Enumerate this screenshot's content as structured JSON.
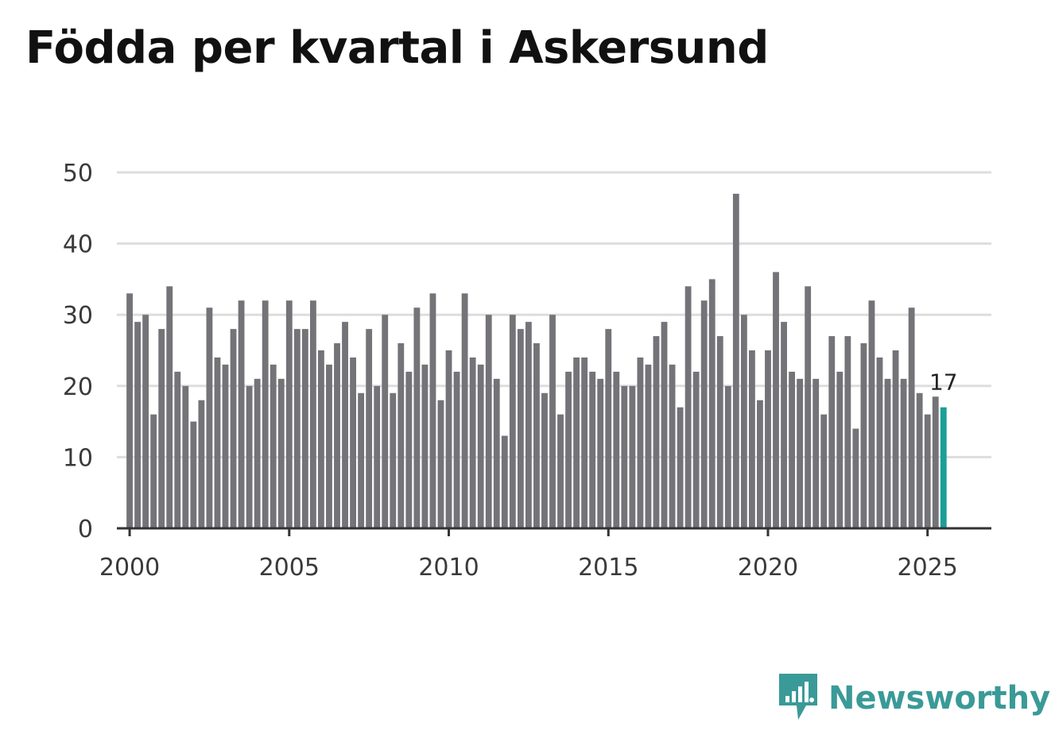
{
  "title": "Födda per kvartal i Askersund",
  "brand": {
    "name": "Newsworthy",
    "icon": "newsworthy-logo-icon"
  },
  "colors": {
    "bar": "#747378",
    "highlight": "#1a9f98",
    "grid": "#dddddd",
    "axis": "#333333",
    "brand": "#3a9a97"
  },
  "chart_data": {
    "type": "bar",
    "title": "Födda per kvartal i Askersund",
    "xlabel": "",
    "ylabel": "",
    "ylim": [
      0,
      50
    ],
    "yticks": [
      0,
      10,
      20,
      30,
      40,
      50
    ],
    "xticks": [
      2000,
      2005,
      2010,
      2015,
      2020,
      2025
    ],
    "xlim": [
      1999.6,
      2027.0
    ],
    "start_year": 2000,
    "periods_per_year": 4,
    "values": [
      33,
      29,
      30,
      16,
      28,
      34,
      22,
      20,
      15,
      18,
      31,
      24,
      23,
      28,
      32,
      20,
      21,
      32,
      23,
      21,
      32,
      28,
      28,
      32,
      25,
      23,
      26,
      29,
      24,
      19,
      28,
      20,
      30,
      19,
      26,
      22,
      31,
      23,
      33,
      18,
      25,
      22,
      33,
      24,
      23,
      30,
      21,
      13,
      30,
      28,
      29,
      26,
      19,
      30,
      16,
      22,
      24,
      24,
      22,
      21,
      28,
      22,
      20,
      20,
      24,
      23,
      27,
      29,
      23,
      17,
      34,
      22,
      32,
      35,
      27,
      20,
      47,
      30,
      25,
      18,
      25,
      36,
      29,
      22,
      21,
      34,
      21,
      16,
      27,
      22,
      27,
      14,
      26,
      32,
      24,
      21,
      25,
      21,
      31,
      19,
      16,
      18.5,
      17
    ],
    "highlight_last": true,
    "last_label": "17"
  }
}
